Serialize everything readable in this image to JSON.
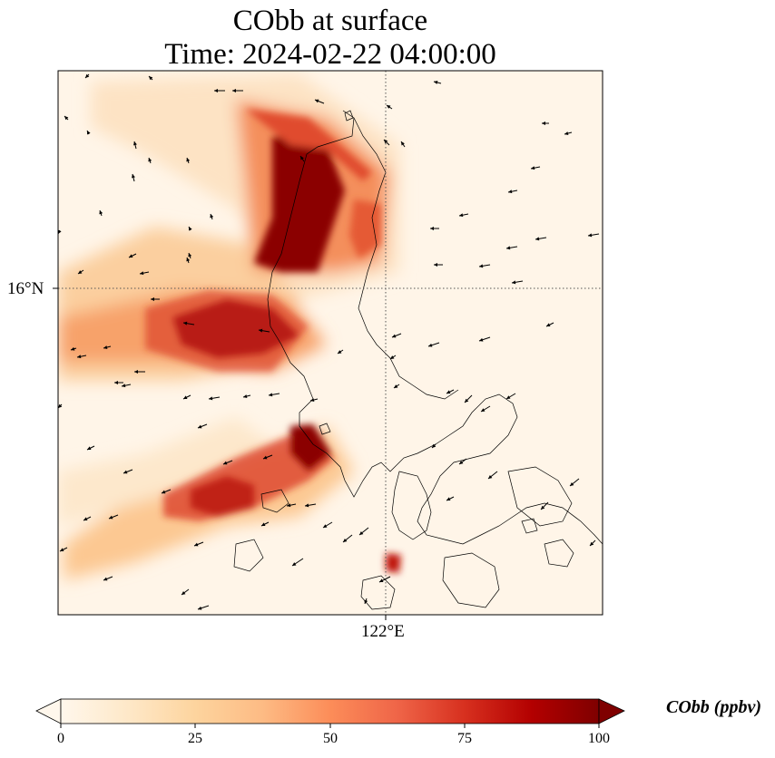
{
  "title": {
    "line1": "CObb at surface",
    "line2": "Time: 2024-02-22 04:00:00"
  },
  "map": {
    "lat_label": "16°N",
    "lon_label": "122°E",
    "background_color": "#fff5e8",
    "coastline_color": "#000000",
    "gridline_style": "dotted",
    "wind_arrow_color": "#000000"
  },
  "colorbar": {
    "label": "CObb (ppbv)",
    "ticks": [
      "0",
      "25",
      "50",
      "75",
      "100"
    ],
    "colormap": "OrRd",
    "min": 0,
    "max": 100,
    "extend": "both"
  }
}
